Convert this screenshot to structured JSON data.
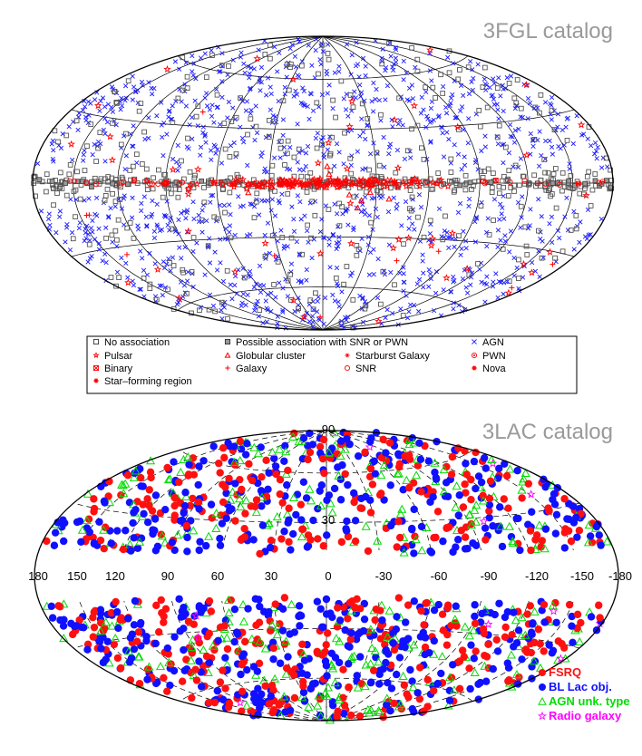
{
  "chart_data": [
    {
      "type": "scatter",
      "projection": "aitoff-hammer all-sky, Galactic coordinates",
      "title": "3FGL catalog",
      "grid": true,
      "legend": {
        "placement": "bottom",
        "entries": [
          {
            "label": "No association",
            "marker": "square",
            "color": "#555555"
          },
          {
            "label": "Possible association with SNR or PWN",
            "marker": "square-filled",
            "color": "#555555"
          },
          {
            "label": "AGN",
            "marker": "x",
            "color": "#1a1aff"
          },
          {
            "label": "Pulsar",
            "marker": "star",
            "color": "#ff0000"
          },
          {
            "label": "Globular cluster",
            "marker": "triangle",
            "color": "#ff0000"
          },
          {
            "label": "Starburst Galaxy",
            "marker": "asterisk",
            "color": "#ff0000"
          },
          {
            "label": "PWN",
            "marker": "circled-dot",
            "color": "#ff0000"
          },
          {
            "label": "Binary",
            "marker": "square-x",
            "color": "#ff0000"
          },
          {
            "label": "Galaxy",
            "marker": "plus",
            "color": "#ff0000"
          },
          {
            "label": "SNR",
            "marker": "circle",
            "color": "#ff0000"
          },
          {
            "label": "Nova",
            "marker": "asterisk-bold",
            "color": "#ff0000"
          },
          {
            "label": "Star–forming region",
            "marker": "asterisk-bold",
            "color": "#ff0000"
          }
        ]
      },
      "series": [
        {
          "name": "AGN",
          "distribution": "isotropic, avoiding Galactic plane",
          "approx_count": 1100
        },
        {
          "name": "No association",
          "distribution": "isotropic with excess near Galactic plane",
          "approx_count": 550
        },
        {
          "name": "Pulsar",
          "distribution": "concentrated along Galactic plane",
          "approx_count": 170
        }
      ]
    },
    {
      "type": "scatter",
      "projection": "aitoff-hammer all-sky, Galactic coordinates",
      "title": "3LAC catalog",
      "grid": true,
      "lon_ticks": [
        "180",
        "150",
        "120",
        "90",
        "60",
        "30",
        "0",
        "-30",
        "-60",
        "-90",
        "-120",
        "-150",
        "-180"
      ],
      "lat_ticks": [
        "90",
        "30"
      ],
      "excluded_band": "|b| < 10 deg",
      "legend": {
        "placement": "bottom-right",
        "entries": [
          {
            "label": "FSRQ",
            "marker": "circle-filled",
            "color": "#ff1010"
          },
          {
            "label": "BL Lac obj.",
            "marker": "circle-filled",
            "color": "#1010ff"
          },
          {
            "label": "AGN unk. type",
            "marker": "triangle",
            "color": "#00dd00"
          },
          {
            "label": "Radio galaxy",
            "marker": "star",
            "color": "#ff00ff"
          }
        ]
      },
      "series": [
        {
          "name": "FSRQ",
          "approx_count": 480
        },
        {
          "name": "BL Lac obj.",
          "approx_count": 600
        },
        {
          "name": "AGN unk. type",
          "approx_count": 300
        },
        {
          "name": "Radio galaxy",
          "approx_count": 12
        }
      ]
    }
  ]
}
